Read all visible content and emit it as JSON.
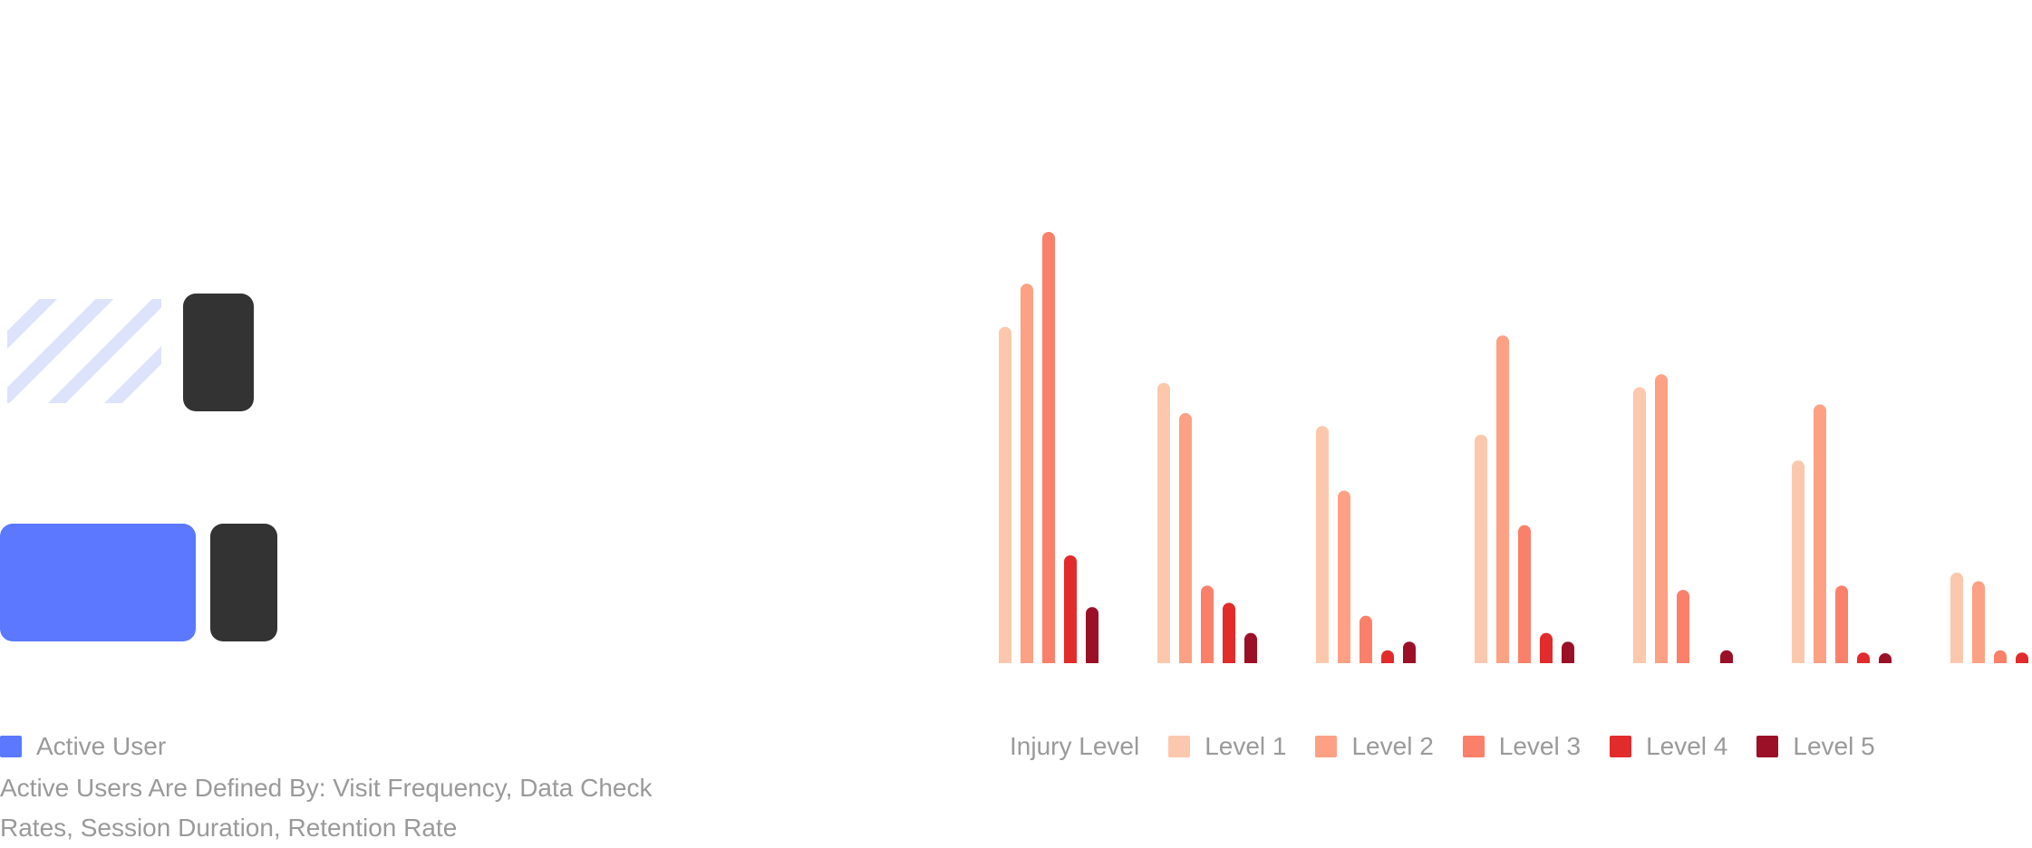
{
  "chart_data": [
    {
      "type": "bar",
      "orientation": "horizontal",
      "categories": [
        "",
        ""
      ],
      "values": [
        170,
        216
      ],
      "series": [
        {
          "name": "Active User",
          "color": "#5b78ff",
          "values": [
            170,
            216
          ]
        }
      ],
      "first_bar_style": "hatched",
      "value_labels_shown": false,
      "legend": {
        "position": "bottom-left",
        "entries": [
          "Active User"
        ]
      },
      "note": "Active Users Are Defined By: Visit Frequency, Data Check Rates, Session Duration, Retention Rate"
    },
    {
      "type": "bar",
      "legend_title": "Injury Level",
      "legend": {
        "position": "bottom"
      },
      "categories": [
        "",
        "",
        "",
        "",
        "",
        "",
        ""
      ],
      "ylim": [
        0,
        100
      ],
      "grid": false,
      "series": [
        {
          "name": "Level 1",
          "color": "#fcc8ad",
          "values": [
            78,
            65,
            55,
            53,
            64,
            47,
            21
          ]
        },
        {
          "name": "Level 2",
          "color": "#fca184",
          "values": [
            88,
            58,
            40,
            76,
            67,
            60,
            19
          ]
        },
        {
          "name": "Level 3",
          "color": "#fb8069",
          "values": [
            100,
            18,
            11,
            32,
            17,
            18,
            3
          ]
        },
        {
          "name": "Level 4",
          "color": "#e22b2b",
          "values": [
            25,
            14,
            3,
            7,
            0,
            2,
            2
          ]
        },
        {
          "name": "Level 5",
          "color": "#9b1027",
          "values": [
            13,
            7,
            5,
            5,
            3,
            1,
            1
          ]
        }
      ]
    }
  ],
  "labels": {
    "left_legend": "Active User",
    "left_note": "Active Users Are Defined By: Visit Frequency, Data Check Rates, Session Duration, Retention Rate",
    "right_legend_title": "Injury Level",
    "right_legend_items": [
      "Level 1",
      "Level 2",
      "Level 3",
      "Level 4",
      "Level 5"
    ]
  }
}
